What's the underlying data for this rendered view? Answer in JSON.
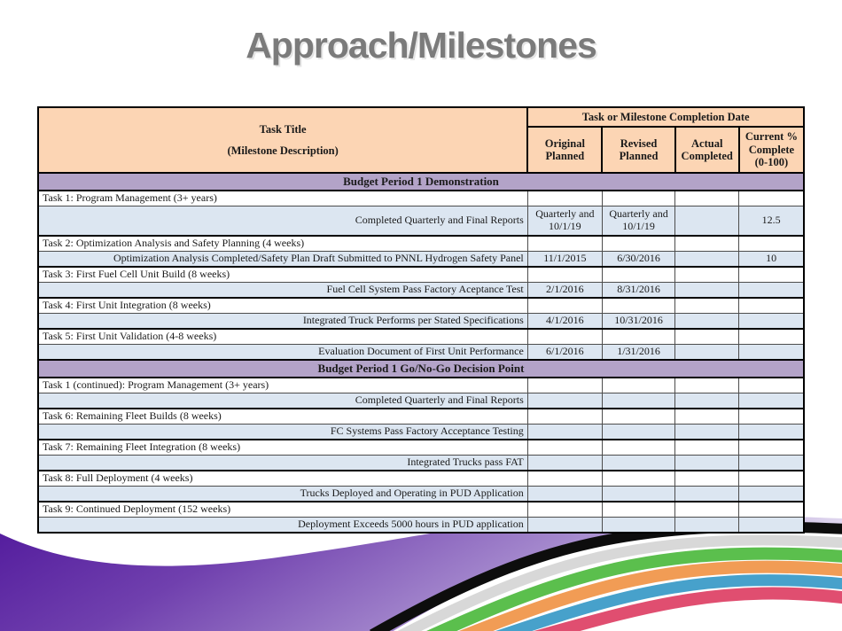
{
  "slide": {
    "title": "Approach/Milestones"
  },
  "table": {
    "header": {
      "task_title_line1": "Task Title",
      "task_title_line2": "(Milestone Description)",
      "completion_date": "Task or Milestone Completion Date",
      "columns": [
        "Original Planned",
        "Revised Planned",
        "Actual Completed",
        "Current % Complete (0-100)"
      ]
    },
    "sections": [
      {
        "title": "Budget Period 1 Demonstration",
        "rows": [
          {
            "type": "task",
            "label": "Task 1: Program Management (3+ years)"
          },
          {
            "type": "milestone",
            "label": "Completed Quarterly and Final Reports",
            "original": "Quarterly and 10/1/19",
            "revised": "Quarterly and 10/1/19",
            "actual": "",
            "percent": "12.5",
            "tall": true
          },
          {
            "type": "task",
            "label": "Task 2: Optimization Analysis and Safety Planning (4 weeks)"
          },
          {
            "type": "milestone",
            "label": "Optimization Analysis Completed/Safety Plan Draft Submitted to PNNL Hydrogen Safety Panel",
            "original": "11/1/2015",
            "revised": "6/30/2016",
            "actual": "",
            "percent": "10"
          },
          {
            "type": "task",
            "label": "Task 3: First Fuel Cell Unit Build (8 weeks)"
          },
          {
            "type": "milestone",
            "label": "Fuel Cell System Pass Factory Aceptance Test",
            "original": "2/1/2016",
            "revised": "8/31/2016",
            "actual": "",
            "percent": ""
          },
          {
            "type": "task",
            "label": "Task 4: First Unit Integration (8 weeks)"
          },
          {
            "type": "milestone",
            "label": "Integrated Truck Performs per Stated Specifications",
            "original": "4/1/2016",
            "revised": "10/31/2016",
            "actual": "",
            "percent": ""
          },
          {
            "type": "task",
            "label": "Task 5: First Unit Validation (4-8 weeks)"
          },
          {
            "type": "milestone",
            "label": "Evaluation Document of First Unit Performance",
            "original": "6/1/2016",
            "revised": "1/31/2016",
            "actual": "",
            "percent": ""
          }
        ]
      },
      {
        "title": "Budget Period 1 Go/No-Go Decision Point",
        "rows": [
          {
            "type": "task",
            "label": "Task 1 (continued): Program Management (3+ years)"
          },
          {
            "type": "milestone",
            "label": "Completed Quarterly and Final Reports",
            "original": "",
            "revised": "",
            "actual": "",
            "percent": ""
          },
          {
            "type": "task",
            "label": "Task 6: Remaining Fleet Builds (8 weeks)"
          },
          {
            "type": "milestone",
            "label": "FC Systems Pass Factory Acceptance Testing",
            "original": "",
            "revised": "",
            "actual": "",
            "percent": ""
          },
          {
            "type": "task",
            "label": "Task 7: Remaining Fleet Integration (8 weeks)"
          },
          {
            "type": "milestone",
            "label": "Integrated Trucks pass FAT",
            "original": "",
            "revised": "",
            "actual": "",
            "percent": ""
          },
          {
            "type": "task",
            "label": "Task 8: Full Deployment (4 weeks)"
          },
          {
            "type": "milestone",
            "label": "Trucks Deployed and Operating in PUD Application",
            "original": "",
            "revised": "",
            "actual": "",
            "percent": ""
          },
          {
            "type": "task",
            "label": "Task 9: Continued Deployment (152 weeks)"
          },
          {
            "type": "milestone",
            "label": "Deployment Exceeds 5000 hours in PUD application",
            "original": "",
            "revised": "",
            "actual": "",
            "percent": ""
          }
        ]
      }
    ]
  },
  "colors": {
    "title_text": "#7b7b7b",
    "header_fill": "#fcd5b4",
    "section_fill": "#b3a3c8",
    "milestone_fill": "#dce6f1",
    "border_thick": "#000000",
    "border_thin": "#4d4d4d"
  },
  "decoration": {
    "purple_gradient": [
      "#51199c",
      "#7040ae",
      "#a488cd",
      "#e9e3f4"
    ],
    "stripes": [
      {
        "name": "black-stripe",
        "color": "#0d0d0d",
        "width": 12
      },
      {
        "name": "silver-stripe",
        "color": "#d8d8d8",
        "width": 12
      },
      {
        "name": "green-stripe",
        "color": "#5bbf4d",
        "width": 14
      },
      {
        "name": "orange-stripe",
        "color": "#f19c55",
        "width": 14
      },
      {
        "name": "blue-stripe",
        "color": "#47a1cb",
        "width": 13
      },
      {
        "name": "pink-stripe",
        "color": "#e04e70",
        "width": 14
      }
    ]
  }
}
